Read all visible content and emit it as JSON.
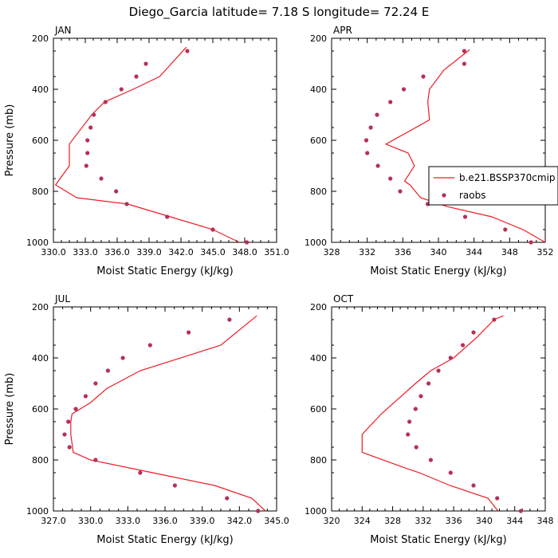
{
  "figure": {
    "title": "Diego_Garcia  latitude= 7.18 S longitude= 72.24 E"
  },
  "colors": {
    "model": "#ee1c25",
    "obs": "#b5305a",
    "axes": "#000000"
  },
  "chart_data": [
    {
      "type": "line",
      "panel": "JAN",
      "xlabel": "Moist Static Energy (kJ/kg)",
      "ylabel": "Pressure (mb)",
      "xlim": [
        330.0,
        351.0
      ],
      "ylim": [
        1000,
        200
      ],
      "y_reversed": true,
      "xticks": [
        "330.0",
        "333.0",
        "336.0",
        "339.0",
        "342.0",
        "345.0",
        "348.0",
        "351.0"
      ],
      "yticks": [
        "200",
        "400",
        "600",
        "800",
        "1000"
      ],
      "legend": null,
      "series": [
        {
          "name": "b.e21.BSSP370cmip",
          "kind": "line",
          "points": [
            [
              347.5,
              1000
            ],
            [
              345.0,
              950
            ],
            [
              341.0,
              900
            ],
            [
              337.0,
              850
            ],
            [
              332.2,
              825
            ],
            [
              330.2,
              775
            ],
            [
              331.5,
              700
            ],
            [
              331.5,
              650
            ],
            [
              331.5,
              615
            ],
            [
              333.6,
              500
            ],
            [
              334.8,
              450
            ],
            [
              337.5,
              400
            ],
            [
              340.0,
              350
            ],
            [
              342.5,
              235
            ]
          ]
        },
        {
          "name": "raobs",
          "kind": "markers",
          "points": [
            [
              348.2,
              1000
            ],
            [
              345.0,
              950
            ],
            [
              340.7,
              900
            ],
            [
              336.9,
              850
            ],
            [
              335.9,
              800
            ],
            [
              334.5,
              750
            ],
            [
              333.1,
              700
            ],
            [
              333.2,
              650
            ],
            [
              333.2,
              600
            ],
            [
              333.5,
              550
            ],
            [
              333.8,
              500
            ],
            [
              334.9,
              450
            ],
            [
              336.4,
              400
            ],
            [
              337.8,
              350
            ],
            [
              338.7,
              300
            ],
            [
              342.6,
              250
            ]
          ]
        }
      ]
    },
    {
      "type": "line",
      "panel": "APR",
      "xlabel": "Moist Static Energy (kJ/kg)",
      "ylabel": "",
      "xlim": [
        328,
        352
      ],
      "ylim": [
        1000,
        200
      ],
      "y_reversed": true,
      "xticks": [
        "328",
        "332",
        "336",
        "340",
        "344",
        "348",
        "352"
      ],
      "yticks": [
        "200",
        "400",
        "600",
        "800",
        "1000"
      ],
      "legend": {
        "position": "right",
        "entries": [
          "b.e21.BSSP370cmip",
          "raobs"
        ]
      },
      "series": [
        {
          "name": "b.e21.BSSP370cmip",
          "kind": "line",
          "points": [
            [
              352.0,
              1000
            ],
            [
              349.5,
              950
            ],
            [
              346.0,
              900
            ],
            [
              341.0,
              860
            ],
            [
              338.0,
              825
            ],
            [
              336.8,
              775
            ],
            [
              336.2,
              760
            ],
            [
              337.3,
              700
            ],
            [
              336.6,
              650
            ],
            [
              334.1,
              615
            ],
            [
              339.0,
              520
            ],
            [
              338.8,
              450
            ],
            [
              339.0,
              400
            ],
            [
              340.6,
              325
            ],
            [
              343.5,
              245
            ]
          ]
        },
        {
          "name": "raobs",
          "kind": "markers",
          "points": [
            [
              350.4,
              1000
            ],
            [
              347.5,
              950
            ],
            [
              343.0,
              900
            ],
            [
              338.8,
              850
            ],
            [
              335.7,
              800
            ],
            [
              334.6,
              750
            ],
            [
              333.2,
              700
            ],
            [
              332.0,
              650
            ],
            [
              331.9,
              600
            ],
            [
              332.4,
              550
            ],
            [
              333.1,
              500
            ],
            [
              334.6,
              450
            ],
            [
              336.1,
              400
            ],
            [
              338.3,
              350
            ],
            [
              342.9,
              300
            ],
            [
              342.9,
              250
            ]
          ]
        }
      ]
    },
    {
      "type": "line",
      "panel": "JUL",
      "xlabel": "Moist Static Energy (kJ/kg)",
      "ylabel": "Pressure (mb)",
      "xlim": [
        327.0,
        345.0
      ],
      "ylim": [
        1000,
        200
      ],
      "y_reversed": true,
      "xticks": [
        "327.0",
        "330.0",
        "333.0",
        "336.0",
        "339.0",
        "342.0",
        "345.0"
      ],
      "yticks": [
        "200",
        "400",
        "600",
        "800",
        "1000"
      ],
      "legend": null,
      "series": [
        {
          "name": "b.e21.BSSP370cmip",
          "kind": "line",
          "points": [
            [
              344.1,
              1000
            ],
            [
              343.0,
              950
            ],
            [
              340.0,
              900
            ],
            [
              335.0,
              850
            ],
            [
              330.0,
              800
            ],
            [
              328.6,
              770
            ],
            [
              328.4,
              700
            ],
            [
              328.4,
              650
            ],
            [
              328.5,
              620
            ],
            [
              330.0,
              575
            ],
            [
              331.3,
              520
            ],
            [
              334.0,
              450
            ],
            [
              340.5,
              350
            ],
            [
              343.4,
              235
            ]
          ]
        },
        {
          "name": "raobs",
          "kind": "markers",
          "points": [
            [
              343.5,
              1000
            ],
            [
              341.0,
              950
            ],
            [
              336.8,
              900
            ],
            [
              334.0,
              850
            ],
            [
              330.4,
              800
            ],
            [
              328.3,
              750
            ],
            [
              327.9,
              700
            ],
            [
              328.2,
              650
            ],
            [
              328.8,
              600
            ],
            [
              329.6,
              550
            ],
            [
              330.4,
              500
            ],
            [
              331.4,
              450
            ],
            [
              332.6,
              400
            ],
            [
              334.8,
              350
            ],
            [
              337.9,
              300
            ],
            [
              341.2,
              250
            ]
          ]
        }
      ]
    },
    {
      "type": "line",
      "panel": "OCT",
      "xlabel": "Moist Static Energy (kJ/kg)",
      "ylabel": "",
      "xlim": [
        320,
        348
      ],
      "ylim": [
        1000,
        200
      ],
      "y_reversed": true,
      "xticks": [
        "320",
        "324",
        "328",
        "332",
        "336",
        "340",
        "344",
        "348"
      ],
      "yticks": [
        "200",
        "400",
        "600",
        "800",
        "1000"
      ],
      "legend": null,
      "series": [
        {
          "name": "b.e21.BSSP370cmip",
          "kind": "line",
          "points": [
            [
              341.8,
              1000
            ],
            [
              340.5,
              950
            ],
            [
              335.5,
              900
            ],
            [
              331.5,
              850
            ],
            [
              329.5,
              830
            ],
            [
              324.0,
              770
            ],
            [
              324.0,
              700
            ],
            [
              326.5,
              620
            ],
            [
              331.0,
              500
            ],
            [
              333.0,
              450
            ],
            [
              336.0,
              400
            ],
            [
              339.0,
              320
            ],
            [
              341.3,
              250
            ],
            [
              342.5,
              235
            ]
          ]
        },
        {
          "name": "raobs",
          "kind": "markers",
          "points": [
            [
              344.8,
              1000
            ],
            [
              341.7,
              950
            ],
            [
              338.6,
              900
            ],
            [
              335.6,
              850
            ],
            [
              333.0,
              800
            ],
            [
              331.1,
              750
            ],
            [
              330.0,
              700
            ],
            [
              330.2,
              650
            ],
            [
              331.0,
              600
            ],
            [
              331.7,
              550
            ],
            [
              332.7,
              500
            ],
            [
              334.0,
              450
            ],
            [
              335.6,
              400
            ],
            [
              337.2,
              350
            ],
            [
              338.6,
              300
            ],
            [
              341.3,
              250
            ]
          ]
        }
      ]
    }
  ]
}
